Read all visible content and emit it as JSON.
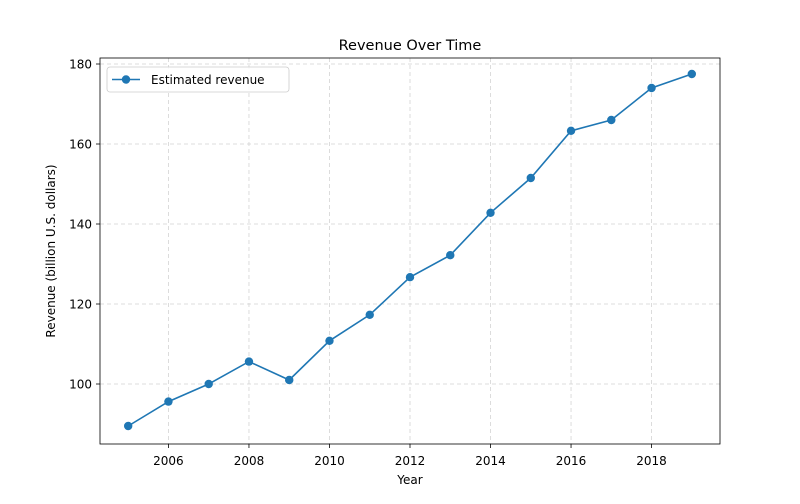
{
  "chart_data": {
    "type": "line",
    "title": "Revenue Over Time",
    "xlabel": "Year",
    "ylabel": "Revenue (billion U.S. dollars)",
    "x": [
      2005,
      2006,
      2007,
      2008,
      2009,
      2010,
      2011,
      2012,
      2013,
      2014,
      2015,
      2016,
      2017,
      2018,
      2019
    ],
    "series": [
      {
        "name": "Estimated revenue",
        "values": [
          89.5,
          95.6,
          100.0,
          105.6,
          101.0,
          110.8,
          117.3,
          126.7,
          132.2,
          142.8,
          151.5,
          163.3,
          166.0,
          174.0,
          177.5
        ]
      }
    ],
    "xlim": [
      2004.3,
      2019.7
    ],
    "ylim": [
      85.0,
      181.5
    ],
    "xticks": [
      2006,
      2008,
      2010,
      2012,
      2014,
      2016,
      2018
    ],
    "yticks": [
      100,
      120,
      140,
      160,
      180
    ],
    "grid": true,
    "legend_position": "upper-left",
    "colors": {
      "series": "#1f77b4",
      "grid": "#d3d3d3",
      "axes": "#000000"
    }
  }
}
